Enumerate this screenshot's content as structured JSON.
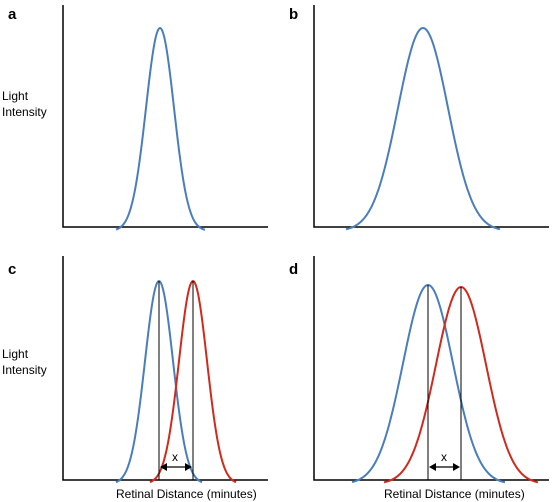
{
  "figure": {
    "y_axis_label_line1": "Light",
    "y_axis_label_line2": "Intensity",
    "x_axis_label": "Retinal Distance (minutes)",
    "separation_label": "x",
    "colors": {
      "blue": "#4a7ebb",
      "red": "#d02a1e",
      "axis": "#000000"
    }
  },
  "panels": [
    {
      "letter": "a",
      "curves": [
        "narrow-blue"
      ]
    },
    {
      "letter": "b",
      "curves": [
        "wide-blue"
      ]
    },
    {
      "letter": "c",
      "curves": [
        "narrow-blue",
        "narrow-red"
      ],
      "separation": "x"
    },
    {
      "letter": "d",
      "curves": [
        "wide-blue",
        "wide-red"
      ],
      "separation": "x"
    }
  ]
}
